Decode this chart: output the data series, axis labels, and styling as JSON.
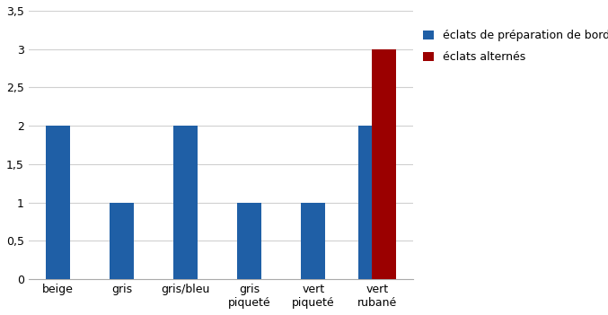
{
  "categories": [
    "beige",
    "gris",
    "gris/bleu",
    "gris\npiqueté",
    "vert\npiqueté",
    "vert\nrubané"
  ],
  "blue_values": [
    2,
    1,
    2,
    1,
    1,
    2
  ],
  "red_values": [
    0,
    0,
    0,
    0,
    0,
    3
  ],
  "blue_color": "#1f5fa6",
  "red_color": "#9b0000",
  "legend_blue": "éclats de préparation de bord",
  "legend_red": "éclats alternés",
  "ylim": [
    0,
    3.5
  ],
  "yticks": [
    0,
    0.5,
    1,
    1.5,
    2,
    2.5,
    3,
    3.5
  ],
  "bar_width": 0.38,
  "group_width": 0.42,
  "background_color": "#ffffff",
  "grid_color": "#d0d0d0"
}
